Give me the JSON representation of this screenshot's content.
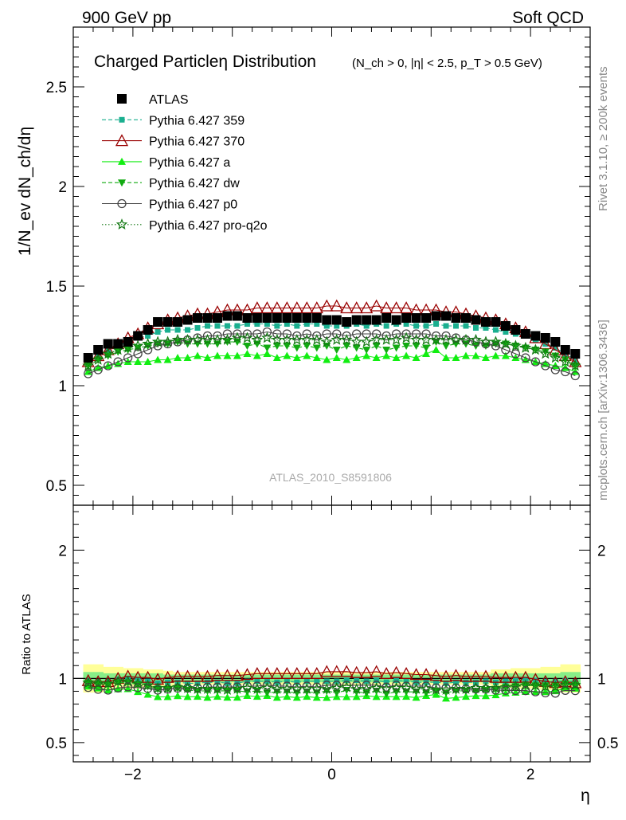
{
  "header": {
    "left": "900 GeV pp",
    "right": "Soft QCD"
  },
  "side_labels": {
    "rivet": "Rivet 3.1.10, ≥ 200k events",
    "mcplots": "mcplots.cern.ch [arXiv:1306.3436]"
  },
  "watermark": "ATLAS_2010_S8591806",
  "colors": {
    "atlas": "#000000",
    "p359": "#1aaf8f",
    "p370": "#990000",
    "pa": "#11ee11",
    "pdw": "#11aa11",
    "pp0": "#444444",
    "pq2o": "#117711",
    "band_inner": "#88ee88",
    "band_outer": "#ffff99"
  },
  "chart_data": {
    "type": "scatter",
    "title": "Charged Particleη Distribution",
    "title_cuts": "(N_ch > 0, |η| < 2.5, p_T > 0.5 GeV)",
    "xlabel": "η",
    "ylabel": "1/N_ev dN_ch/dη",
    "ratio_ylabel": "Ratio to ATLAS",
    "xlim": [
      -2.6,
      2.6
    ],
    "ylim": [
      0.4,
      2.8
    ],
    "ratio_ylim": [
      0.35,
      2.35
    ],
    "x_ticks": [
      -2,
      0,
      2
    ],
    "x_tick_labels": [
      "−2",
      "0",
      "2"
    ],
    "y_ticks": [
      0.5,
      1,
      1.5,
      2,
      2.5
    ],
    "y_tick_labels": [
      "0.5",
      "1",
      "1.5",
      "2",
      "2.5"
    ],
    "ratio_ticks": [
      0.5,
      1,
      2
    ],
    "ratio_tick_labels": [
      "0.5",
      "1",
      "2"
    ],
    "legend_position": "top-left",
    "x": [
      -2.45,
      -2.35,
      -2.25,
      -2.15,
      -2.05,
      -1.95,
      -1.85,
      -1.75,
      -1.65,
      -1.55,
      -1.45,
      -1.35,
      -1.25,
      -1.15,
      -1.05,
      -0.95,
      -0.85,
      -0.75,
      -0.65,
      -0.55,
      -0.45,
      -0.35,
      -0.25,
      -0.15,
      -0.05,
      0.05,
      0.15,
      0.25,
      0.35,
      0.45,
      0.55,
      0.65,
      0.75,
      0.85,
      0.95,
      1.05,
      1.15,
      1.25,
      1.35,
      1.45,
      1.55,
      1.65,
      1.75,
      1.85,
      1.95,
      2.05,
      2.15,
      2.25,
      2.35,
      2.45
    ],
    "series": [
      {
        "name": "ATLAS",
        "key": "atlas",
        "marker": "square",
        "line": "none",
        "values": [
          1.14,
          1.18,
          1.21,
          1.21,
          1.22,
          1.25,
          1.28,
          1.32,
          1.32,
          1.32,
          1.33,
          1.34,
          1.34,
          1.34,
          1.35,
          1.35,
          1.34,
          1.34,
          1.34,
          1.34,
          1.34,
          1.34,
          1.34,
          1.34,
          1.33,
          1.33,
          1.32,
          1.33,
          1.33,
          1.33,
          1.34,
          1.33,
          1.34,
          1.34,
          1.34,
          1.35,
          1.35,
          1.34,
          1.34,
          1.33,
          1.32,
          1.32,
          1.3,
          1.28,
          1.26,
          1.25,
          1.24,
          1.22,
          1.18,
          1.16
        ]
      },
      {
        "name": "Pythia 6.427 359",
        "key": "p359",
        "marker": "small-square",
        "line": "dashed",
        "values": [
          1.12,
          1.15,
          1.18,
          1.2,
          1.22,
          1.24,
          1.25,
          1.27,
          1.28,
          1.28,
          1.28,
          1.29,
          1.3,
          1.3,
          1.3,
          1.3,
          1.31,
          1.31,
          1.31,
          1.3,
          1.31,
          1.3,
          1.31,
          1.31,
          1.3,
          1.3,
          1.3,
          1.31,
          1.3,
          1.31,
          1.3,
          1.31,
          1.31,
          1.3,
          1.3,
          1.31,
          1.3,
          1.3,
          1.3,
          1.29,
          1.29,
          1.28,
          1.27,
          1.26,
          1.25,
          1.23,
          1.21,
          1.19,
          1.16,
          1.13
        ]
      },
      {
        "name": "Pythia 6.427 370",
        "key": "p370",
        "marker": "open-triangle",
        "line": "solid",
        "values": [
          1.12,
          1.15,
          1.18,
          1.21,
          1.24,
          1.26,
          1.29,
          1.31,
          1.33,
          1.34,
          1.35,
          1.36,
          1.36,
          1.37,
          1.38,
          1.38,
          1.38,
          1.39,
          1.39,
          1.39,
          1.39,
          1.39,
          1.39,
          1.39,
          1.4,
          1.4,
          1.39,
          1.39,
          1.39,
          1.4,
          1.39,
          1.39,
          1.39,
          1.38,
          1.38,
          1.38,
          1.37,
          1.37,
          1.36,
          1.35,
          1.34,
          1.33,
          1.31,
          1.29,
          1.27,
          1.24,
          1.21,
          1.18,
          1.15,
          1.12
        ]
      },
      {
        "name": "Pythia 6.427 a",
        "key": "pa",
        "marker": "triangle",
        "line": "solid",
        "values": [
          1.07,
          1.09,
          1.1,
          1.11,
          1.12,
          1.12,
          1.12,
          1.13,
          1.13,
          1.14,
          1.14,
          1.15,
          1.14,
          1.15,
          1.15,
          1.15,
          1.16,
          1.15,
          1.16,
          1.14,
          1.15,
          1.14,
          1.15,
          1.14,
          1.13,
          1.14,
          1.13,
          1.14,
          1.15,
          1.14,
          1.15,
          1.14,
          1.15,
          1.14,
          1.16,
          1.18,
          1.14,
          1.14,
          1.15,
          1.15,
          1.14,
          1.15,
          1.15,
          1.14,
          1.13,
          1.12,
          1.11,
          1.1,
          1.09,
          1.07
        ]
      },
      {
        "name": "Pythia 6.427 dw",
        "key": "pdw",
        "marker": "inverted-triangle",
        "line": "dashed",
        "values": [
          1.1,
          1.13,
          1.15,
          1.17,
          1.18,
          1.19,
          1.2,
          1.21,
          1.21,
          1.22,
          1.21,
          1.21,
          1.21,
          1.21,
          1.22,
          1.22,
          1.2,
          1.21,
          1.19,
          1.2,
          1.2,
          1.19,
          1.2,
          1.19,
          1.2,
          1.18,
          1.2,
          1.19,
          1.18,
          1.2,
          1.18,
          1.19,
          1.2,
          1.2,
          1.19,
          1.22,
          1.2,
          1.21,
          1.21,
          1.2,
          1.2,
          1.21,
          1.21,
          1.2,
          1.19,
          1.18,
          1.17,
          1.15,
          1.13,
          1.1
        ]
      },
      {
        "name": "Pythia 6.427 p0",
        "key": "pp0",
        "marker": "open-circle",
        "line": "solid",
        "values": [
          1.06,
          1.08,
          1.1,
          1.12,
          1.14,
          1.16,
          1.18,
          1.2,
          1.21,
          1.22,
          1.23,
          1.24,
          1.25,
          1.25,
          1.26,
          1.26,
          1.26,
          1.26,
          1.27,
          1.26,
          1.26,
          1.25,
          1.26,
          1.25,
          1.26,
          1.26,
          1.25,
          1.26,
          1.26,
          1.26,
          1.25,
          1.26,
          1.26,
          1.26,
          1.26,
          1.25,
          1.25,
          1.24,
          1.23,
          1.22,
          1.21,
          1.2,
          1.18,
          1.16,
          1.14,
          1.12,
          1.1,
          1.08,
          1.07,
          1.05
        ]
      },
      {
        "name": "Pythia 6.427 pro-q2o",
        "key": "pq2o",
        "marker": "star",
        "line": "dotted",
        "values": [
          1.1,
          1.13,
          1.16,
          1.18,
          1.19,
          1.2,
          1.21,
          1.22,
          1.22,
          1.23,
          1.23,
          1.23,
          1.23,
          1.23,
          1.23,
          1.24,
          1.24,
          1.23,
          1.24,
          1.23,
          1.23,
          1.23,
          1.23,
          1.23,
          1.22,
          1.23,
          1.23,
          1.22,
          1.22,
          1.23,
          1.23,
          1.23,
          1.24,
          1.23,
          1.23,
          1.23,
          1.23,
          1.23,
          1.23,
          1.23,
          1.22,
          1.22,
          1.21,
          1.2,
          1.19,
          1.18,
          1.16,
          1.14,
          1.12,
          1.1
        ]
      }
    ],
    "uncertainty_bands": {
      "inner": [
        0.05,
        0.05,
        0.04,
        0.04,
        0.04,
        0.04,
        0.04,
        0.04,
        0.03,
        0.03,
        0.03,
        0.03,
        0.03,
        0.03,
        0.03,
        0.03,
        0.03,
        0.03,
        0.03,
        0.03,
        0.03,
        0.03,
        0.03,
        0.03,
        0.03,
        0.03,
        0.03,
        0.03,
        0.03,
        0.03,
        0.03,
        0.03,
        0.03,
        0.03,
        0.03,
        0.03,
        0.03,
        0.03,
        0.03,
        0.03,
        0.03,
        0.04,
        0.04,
        0.04,
        0.04,
        0.04,
        0.04,
        0.04,
        0.05,
        0.05
      ],
      "outer": [
        0.11,
        0.11,
        0.09,
        0.09,
        0.08,
        0.08,
        0.07,
        0.07,
        0.06,
        0.05,
        0.05,
        0.05,
        0.05,
        0.05,
        0.05,
        0.05,
        0.05,
        0.05,
        0.05,
        0.05,
        0.05,
        0.05,
        0.05,
        0.05,
        0.05,
        0.05,
        0.05,
        0.05,
        0.05,
        0.05,
        0.05,
        0.05,
        0.05,
        0.05,
        0.05,
        0.05,
        0.05,
        0.05,
        0.05,
        0.05,
        0.05,
        0.07,
        0.07,
        0.08,
        0.08,
        0.08,
        0.09,
        0.09,
        0.11,
        0.11
      ]
    }
  }
}
